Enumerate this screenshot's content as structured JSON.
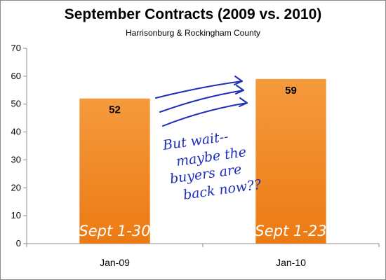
{
  "chart_data": {
    "type": "bar",
    "title": "September Contracts (2009 vs. 2010)",
    "subtitle": "Harrisonburg & Rockingham County",
    "categories": [
      "Jan-09",
      "Jan-10"
    ],
    "values": [
      52,
      59
    ],
    "data_labels": [
      "52",
      "59"
    ],
    "bar_annotations": [
      "Sept 1-30",
      "Sept 1-23"
    ],
    "ylim": [
      0,
      70
    ],
    "yticks": [
      0,
      10,
      20,
      30,
      40,
      50,
      60,
      70
    ],
    "grid": false,
    "legend": "none",
    "bar_color": "#f08a2a",
    "handwritten_note": [
      "But wait--",
      "maybe the",
      "buyers are",
      "back now??"
    ]
  }
}
